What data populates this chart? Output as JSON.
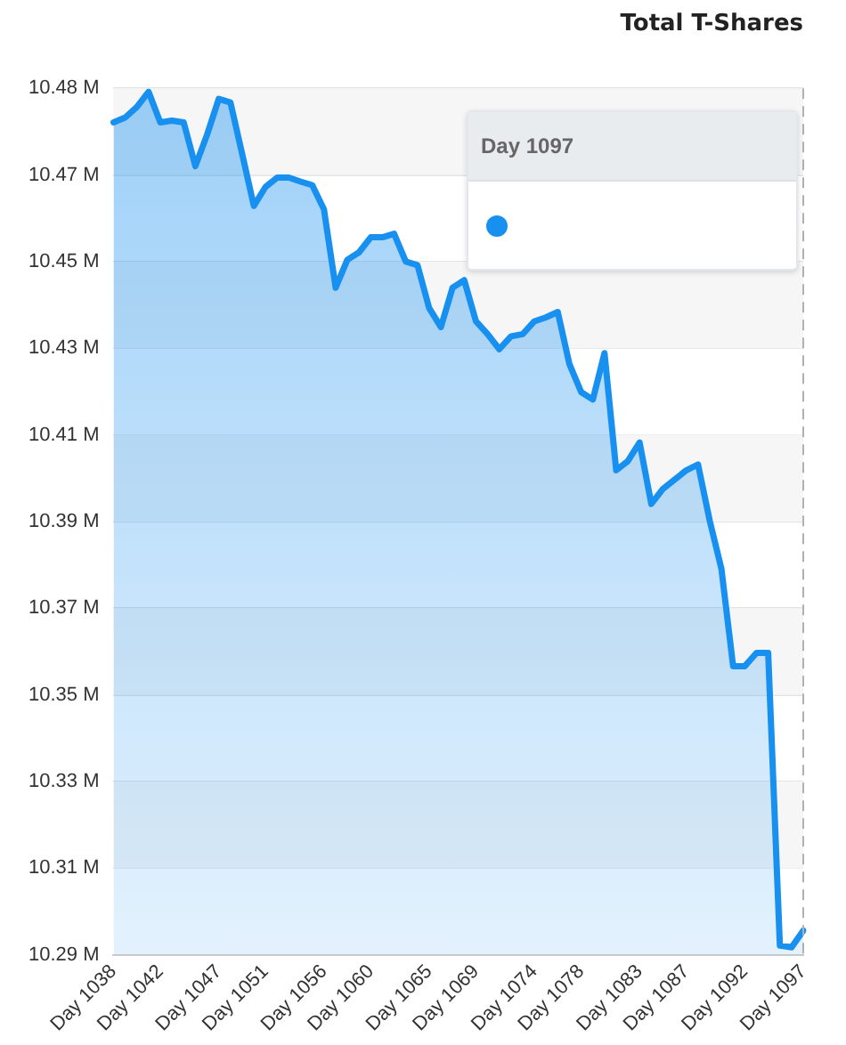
{
  "chart_data": {
    "type": "area",
    "title": "Total T-Shares",
    "categories": [
      "Day 1038",
      null,
      null,
      null,
      "Day 1042",
      null,
      null,
      null,
      null,
      "Day 1047",
      null,
      null,
      null,
      "Day 1051",
      null,
      null,
      null,
      null,
      "Day 1056",
      null,
      null,
      null,
      "Day 1060",
      null,
      null,
      null,
      null,
      "Day 1065",
      null,
      null,
      null,
      "Day 1069",
      null,
      null,
      null,
      null,
      "Day 1074",
      null,
      null,
      null,
      "Day 1078",
      null,
      null,
      null,
      null,
      "Day 1083",
      null,
      null,
      null,
      "Day 1087",
      null,
      null,
      null,
      null,
      "Day 1092",
      null,
      null,
      null,
      null,
      "Day 1097"
    ],
    "series": [
      {
        "color": "#1890f0",
        "values": [
          10.4771,
          10.4782,
          10.4806,
          10.484,
          10.4771,
          10.4775,
          10.4771,
          10.4672,
          10.4743,
          10.4824,
          10.4816,
          10.47,
          10.4582,
          10.4625,
          10.4646,
          10.4646,
          10.4637,
          10.4629,
          10.4574,
          10.4397,
          10.446,
          10.4477,
          10.4511,
          10.4511,
          10.4519,
          10.4456,
          10.4448,
          10.4351,
          10.4308,
          10.4397,
          10.4414,
          10.4321,
          10.4292,
          10.4258,
          10.4287,
          10.4292,
          10.4321,
          10.433,
          10.4342,
          10.4224,
          10.4161,
          10.4144,
          10.4249,
          10.3984,
          10.4005,
          10.4047,
          10.3908,
          10.3942,
          10.3963,
          10.3984,
          10.3997,
          10.387,
          10.3761,
          10.3541,
          10.3541,
          10.3571,
          10.3571,
          10.2909,
          10.2905,
          10.2943
        ]
      }
    ],
    "ylim": [
      10.2888,
      10.4848
    ],
    "yticks": [
      {
        "value": 10.2888,
        "label": "10.29 M"
      },
      {
        "value": 10.3084,
        "label": "10.31 M"
      },
      {
        "value": 10.328,
        "label": "10.33 M"
      },
      {
        "value": 10.3476,
        "label": "10.35 M"
      },
      {
        "value": 10.3672,
        "label": "10.37 M"
      },
      {
        "value": 10.3868,
        "label": "10.39 M"
      },
      {
        "value": 10.4064,
        "label": "10.41 M"
      },
      {
        "value": 10.426,
        "label": "10.43 M"
      },
      {
        "value": 10.4456,
        "label": "10.45 M"
      },
      {
        "value": 10.4652,
        "label": "10.47 M"
      },
      {
        "value": 10.4848,
        "label": "10.48 M"
      }
    ],
    "ref_lines": [
      {
        "axis": "x",
        "value": "Day 1097",
        "line_style": "dashed",
        "color": "#b0b0b0"
      }
    ],
    "annotations": [
      "Day 1097"
    ],
    "grid": "y",
    "marker": "none",
    "line_style": "solid"
  }
}
